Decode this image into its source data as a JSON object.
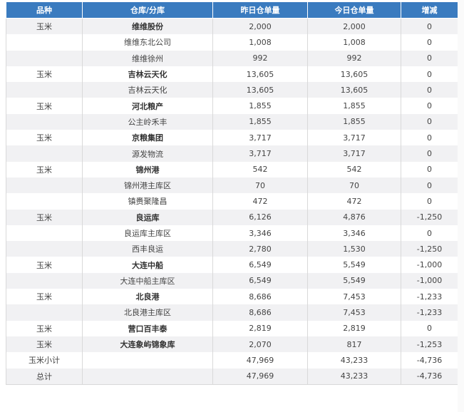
{
  "headers": [
    "品种",
    "仓库/分库",
    "昨日仓单量",
    "今日仓单量",
    "增减"
  ],
  "rows": [
    {
      "variety": "玉米",
      "warehouse": "维维股份",
      "yesterday": "2,000",
      "today": "2,000",
      "change": "0",
      "bold": true
    },
    {
      "variety": "",
      "warehouse": "维维东北公司",
      "yesterday": "1,008",
      "today": "1,008",
      "change": "0",
      "bold": false
    },
    {
      "variety": "",
      "warehouse": "维维徐州",
      "yesterday": "992",
      "today": "992",
      "change": "0",
      "bold": false
    },
    {
      "variety": "玉米",
      "warehouse": "吉林云天化",
      "yesterday": "13,605",
      "today": "13,605",
      "change": "0",
      "bold": true
    },
    {
      "variety": "",
      "warehouse": "吉林云天化",
      "yesterday": "13,605",
      "today": "13,605",
      "change": "0",
      "bold": false
    },
    {
      "variety": "玉米",
      "warehouse": "河北粮产",
      "yesterday": "1,855",
      "today": "1,855",
      "change": "0",
      "bold": true
    },
    {
      "variety": "",
      "warehouse": "公主岭禾丰",
      "yesterday": "1,855",
      "today": "1,855",
      "change": "0",
      "bold": false
    },
    {
      "variety": "玉米",
      "warehouse": "京粮集团",
      "yesterday": "3,717",
      "today": "3,717",
      "change": "0",
      "bold": true
    },
    {
      "variety": "",
      "warehouse": "源发物流",
      "yesterday": "3,717",
      "today": "3,717",
      "change": "0",
      "bold": false
    },
    {
      "variety": "玉米",
      "warehouse": "锦州港",
      "yesterday": "542",
      "today": "542",
      "change": "0",
      "bold": true
    },
    {
      "variety": "",
      "warehouse": "锦州港主库区",
      "yesterday": "70",
      "today": "70",
      "change": "0",
      "bold": false
    },
    {
      "variety": "",
      "warehouse": "镇赉聚隆昌",
      "yesterday": "472",
      "today": "472",
      "change": "0",
      "bold": false
    },
    {
      "variety": "玉米",
      "warehouse": "良运库",
      "yesterday": "6,126",
      "today": "4,876",
      "change": "-1,250",
      "bold": true
    },
    {
      "variety": "",
      "warehouse": "良运库主库区",
      "yesterday": "3,346",
      "today": "3,346",
      "change": "0",
      "bold": false
    },
    {
      "variety": "",
      "warehouse": "西丰良运",
      "yesterday": "2,780",
      "today": "1,530",
      "change": "-1,250",
      "bold": false
    },
    {
      "variety": "玉米",
      "warehouse": "大连中船",
      "yesterday": "6,549",
      "today": "5,549",
      "change": "-1,000",
      "bold": true
    },
    {
      "variety": "",
      "warehouse": "大连中船主库区",
      "yesterday": "6,549",
      "today": "5,549",
      "change": "-1,000",
      "bold": false
    },
    {
      "variety": "玉米",
      "warehouse": "北良港",
      "yesterday": "8,686",
      "today": "7,453",
      "change": "-1,233",
      "bold": true
    },
    {
      "variety": "",
      "warehouse": "北良港主库区",
      "yesterday": "8,686",
      "today": "7,453",
      "change": "-1,233",
      "bold": false
    },
    {
      "variety": "玉米",
      "warehouse": "营口百丰泰",
      "yesterday": "2,819",
      "today": "2,819",
      "change": "0",
      "bold": true
    },
    {
      "variety": "玉米",
      "warehouse": "大连象屿锦象库",
      "yesterday": "2,070",
      "today": "817",
      "change": "-1,253",
      "bold": true
    },
    {
      "variety": "玉米小计",
      "warehouse": "",
      "yesterday": "47,969",
      "today": "43,233",
      "change": "-4,736",
      "bold": false
    },
    {
      "variety": "总计",
      "warehouse": "",
      "yesterday": "47,969",
      "today": "43,233",
      "change": "-4,736",
      "bold": false
    }
  ]
}
